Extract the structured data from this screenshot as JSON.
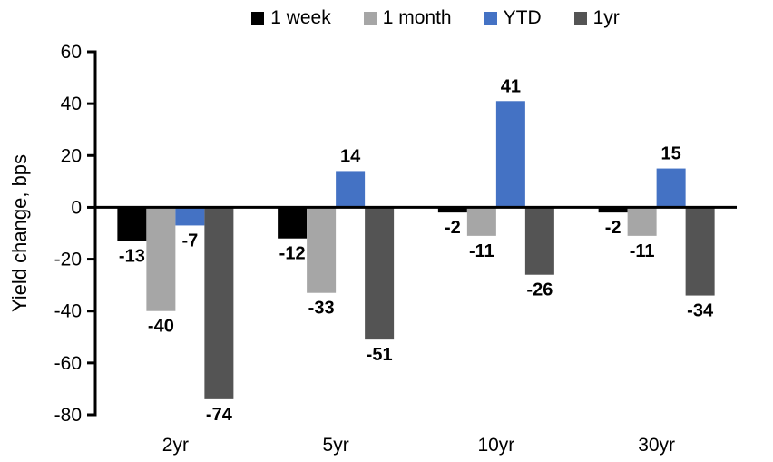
{
  "chart_data": {
    "type": "bar",
    "categories": [
      "2yr",
      "5yr",
      "10yr",
      "30yr"
    ],
    "series": [
      {
        "name": "1 week",
        "color": "#000000",
        "values": [
          -13,
          -12,
          -2,
          -2
        ]
      },
      {
        "name": "1 month",
        "color": "#A6A6A6",
        "values": [
          -40,
          -33,
          -11,
          -11
        ]
      },
      {
        "name": "YTD",
        "color": "#4472C4",
        "values": [
          -7,
          14,
          41,
          15
        ]
      },
      {
        "name": "1yr",
        "color": "#545454",
        "values": [
          -74,
          -51,
          -26,
          -34
        ]
      }
    ],
    "title": "",
    "xlabel": "",
    "ylabel": "Yield change, bps",
    "ylim": [
      -80,
      60
    ],
    "ytick_step": 20,
    "yticks": [
      60,
      40,
      20,
      0,
      -20,
      -40,
      -60,
      -80
    ],
    "legend_position": "top",
    "grid": false,
    "axis_color": "#000000",
    "value_labels_shown": true
  }
}
